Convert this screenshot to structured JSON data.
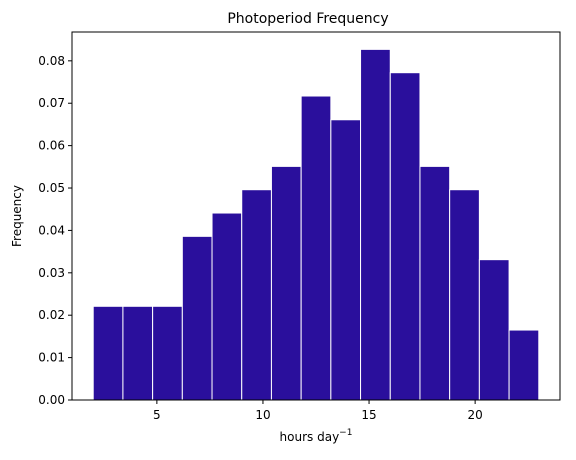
{
  "chart_data": {
    "type": "bar",
    "title": "Photoperiod Frequency",
    "xlabel_base": "hours day",
    "xlabel_sup": "−1",
    "ylabel": "Frequency",
    "bin_edges": [
      2.0,
      3.4,
      4.8,
      6.2,
      7.6,
      9.0,
      10.4,
      11.8,
      13.2,
      14.6,
      16.0,
      17.4,
      18.8,
      20.2,
      21.6,
      23.0
    ],
    "values": [
      0.0221,
      0.0221,
      0.0221,
      0.0386,
      0.0441,
      0.0496,
      0.0551,
      0.0717,
      0.0661,
      0.0827,
      0.0772,
      0.0551,
      0.0496,
      0.0331,
      0.0165
    ],
    "xlim": [
      1.0,
      24.0
    ],
    "ylim": [
      0.0,
      0.0868
    ],
    "xticks": [
      5,
      10,
      15,
      20
    ],
    "yticks": [
      0.0,
      0.01,
      0.02,
      0.03,
      0.04,
      0.05,
      0.06,
      0.07,
      0.08
    ],
    "bar_color": "#2a0f9c",
    "edge_color": "#ffffff",
    "grid": false,
    "legend": "none"
  }
}
